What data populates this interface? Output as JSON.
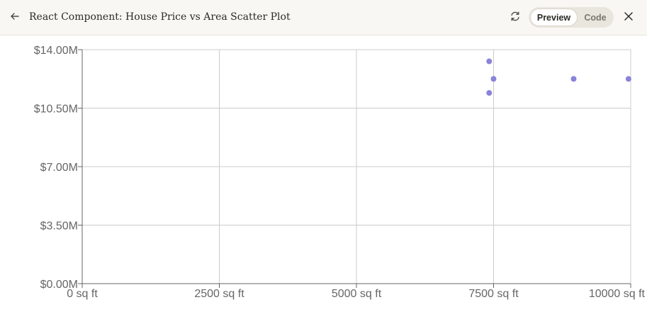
{
  "header": {
    "title": "React Component: House Price vs Area Scatter Plot",
    "back_icon": "arrow-left-icon",
    "refresh_icon": "refresh-icon",
    "close_icon": "close-icon",
    "tabs": [
      {
        "label": "Preview",
        "active": true
      },
      {
        "label": "Code",
        "active": false
      }
    ]
  },
  "colors": {
    "point": "#8b83d9",
    "grid": "#cccccc",
    "axis": "#666666",
    "header_bg": "#f8f7f3"
  },
  "chart_data": {
    "type": "scatter",
    "xlim": [
      0,
      10000
    ],
    "ylim": [
      0,
      14000000
    ],
    "x_ticks": [
      0,
      2500,
      5000,
      7500,
      10000
    ],
    "x_tick_labels": [
      "0 sq ft",
      "2500 sq ft",
      "5000 sq ft",
      "7500 sq ft",
      "10000 sq ft"
    ],
    "y_ticks": [
      0,
      3500000,
      7000000,
      10500000,
      14000000
    ],
    "y_tick_labels": [
      "$0.00M",
      "$3.50M",
      "$7.00M",
      "$10.50M",
      "$14.00M"
    ],
    "grid": true,
    "legend": false,
    "points": [
      {
        "x": 7420,
        "y": 13300000
      },
      {
        "x": 7500,
        "y": 12250000
      },
      {
        "x": 7420,
        "y": 11410000
      },
      {
        "x": 8960,
        "y": 12250000
      },
      {
        "x": 9960,
        "y": 12250000
      }
    ]
  }
}
